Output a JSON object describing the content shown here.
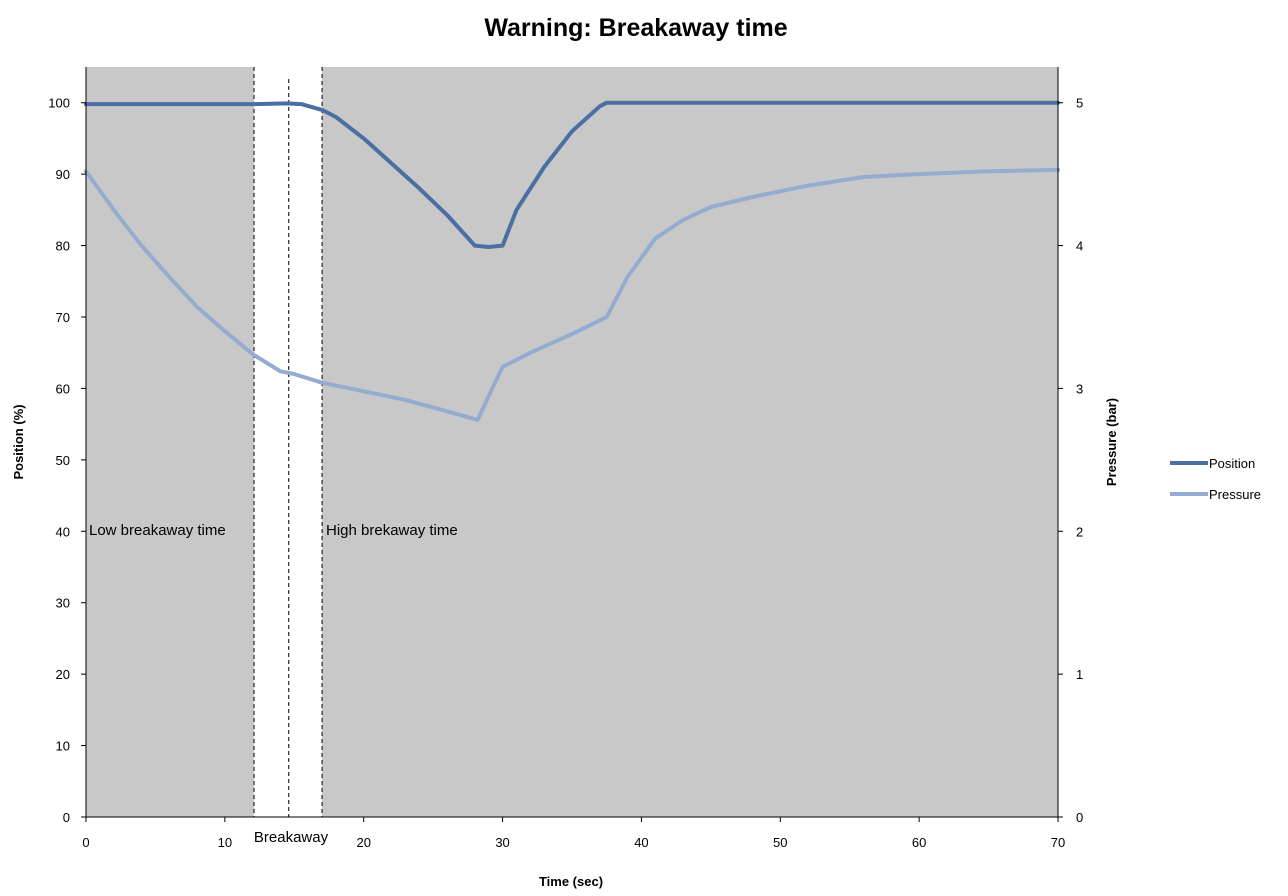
{
  "chart_data": {
    "type": "line",
    "title": "Warning: Breakaway time",
    "xlabel": "Time (sec)",
    "ylabel_left": "Position (%)",
    "ylabel_right": "Pressure (bar)",
    "xlim": [
      0,
      70
    ],
    "ylim_left": [
      0,
      105
    ],
    "ylim_right": [
      0,
      5.25
    ],
    "x_ticks": [
      "0",
      "10",
      "20",
      "30",
      "40",
      "50",
      "60",
      "70"
    ],
    "y_left_ticks": [
      "0",
      "10",
      "20",
      "30",
      "40",
      "50",
      "60",
      "70",
      "80",
      "90",
      "100"
    ],
    "y_right_ticks": [
      "0",
      "1",
      "2",
      "3",
      "4",
      "5"
    ],
    "grid": false,
    "legend_position": "right",
    "colors": {
      "plot_background": "#c8c8c8",
      "breakaway_band": "#ffffff",
      "position": "#4a6fa2",
      "pressure": "#93acd0"
    },
    "regions": {
      "shaded_left": [
        0,
        12.1
      ],
      "white_band": [
        12.1,
        17.0
      ],
      "shaded_right": [
        17.0,
        70
      ],
      "dashed_lines_x": [
        12.1,
        14.6,
        17.0
      ]
    },
    "annotations": {
      "low": "Low breakaway time",
      "high": "High brekaway time",
      "breakaway": "Breakaway"
    },
    "series": [
      {
        "name": "Position",
        "axis": "left",
        "x": [
          0,
          12,
          14.5,
          15.5,
          17,
          18,
          20,
          22,
          24,
          26,
          28,
          29,
          30,
          31,
          33,
          35,
          37,
          37.5,
          40,
          50,
          60,
          70
        ],
        "y": [
          99.8,
          99.8,
          99.9,
          99.8,
          99.0,
          98.0,
          95.0,
          91.5,
          88.0,
          84.3,
          80.0,
          79.8,
          80.0,
          85.0,
          91.0,
          96.0,
          99.5,
          100,
          100,
          100,
          100,
          100
        ]
      },
      {
        "name": "Pressure",
        "axis": "right",
        "x": [
          0,
          2,
          4,
          6,
          8,
          10,
          12,
          14,
          15,
          17,
          20,
          23,
          26,
          28.2,
          29.5,
          30,
          32,
          35,
          37.5,
          39,
          41,
          43,
          45,
          48,
          52,
          56,
          60,
          65,
          70
        ],
        "y": [
          4.52,
          4.25,
          4.0,
          3.78,
          3.57,
          3.4,
          3.24,
          3.12,
          3.1,
          3.04,
          2.98,
          2.92,
          2.84,
          2.78,
          3.05,
          3.15,
          3.25,
          3.38,
          3.5,
          3.78,
          4.05,
          4.18,
          4.27,
          4.34,
          4.42,
          4.48,
          4.5,
          4.52,
          4.53
        ]
      }
    ]
  }
}
